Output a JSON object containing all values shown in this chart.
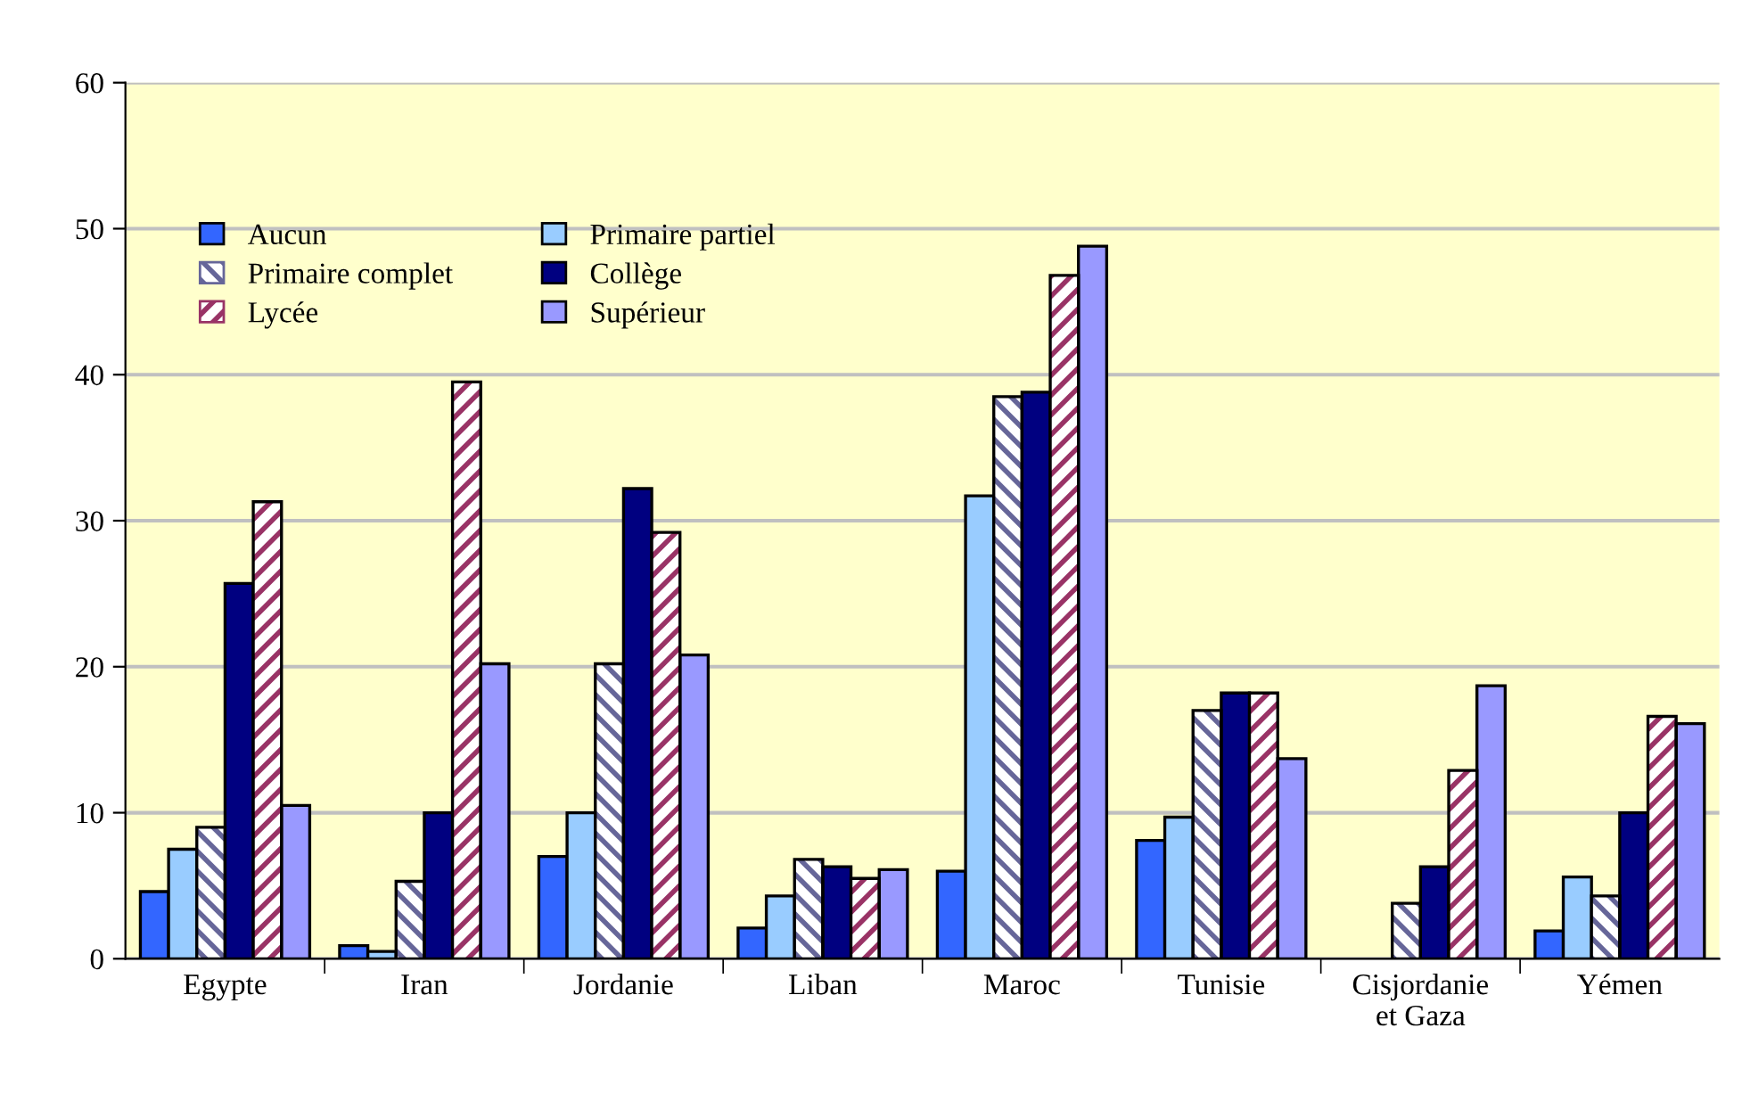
{
  "chart_data": {
    "type": "bar",
    "categories": [
      "Egypte",
      "Iran",
      "Jordanie",
      "Liban",
      "Maroc",
      "Tunisie",
      "Cisjordanie\net Gaza",
      "Yémen"
    ],
    "series": [
      {
        "name": "Aucun",
        "color": "#3366ff",
        "values": [
          4.6,
          0.9,
          7.0,
          2.1,
          6.0,
          8.1,
          null,
          1.9
        ]
      },
      {
        "name": "Primaire partiel",
        "color": "#99ccff",
        "values": [
          7.5,
          0.5,
          10.0,
          4.3,
          31.7,
          9.7,
          null,
          5.6
        ]
      },
      {
        "name": "Primaire complet",
        "color": "#666699",
        "values": [
          9.0,
          5.3,
          20.2,
          6.8,
          38.5,
          17.0,
          3.8,
          4.3
        ]
      },
      {
        "name": "Collège",
        "color": "#000080",
        "values": [
          25.7,
          10.0,
          32.2,
          6.3,
          38.8,
          18.2,
          6.3,
          10.0
        ]
      },
      {
        "name": "Lycée",
        "color": "#993366",
        "values": [
          31.3,
          39.5,
          29.2,
          5.5,
          46.8,
          18.2,
          12.9,
          16.6
        ]
      },
      {
        "name": "Supérieur",
        "color": "#9999ff",
        "values": [
          10.5,
          20.2,
          20.8,
          6.1,
          48.8,
          13.7,
          18.7,
          16.1
        ]
      }
    ],
    "ylim": [
      0,
      60
    ],
    "yticks": [
      0,
      10,
      20,
      30,
      40,
      50,
      60
    ],
    "grid": "y",
    "legend": "top left"
  }
}
